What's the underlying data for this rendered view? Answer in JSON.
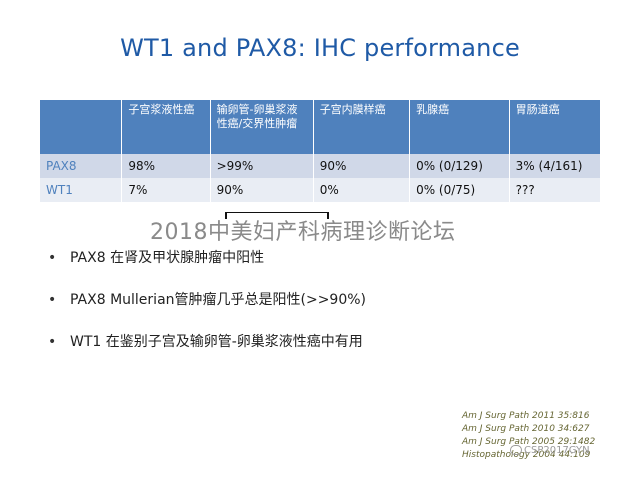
{
  "slide": {
    "title": "WT1 and PAX8: IHC performance"
  },
  "table": {
    "headers": [
      "",
      "子宫浆液性癌",
      "输卵管-卵巢浆液性癌/交界性肿瘤",
      "子宫内膜样癌",
      "乳腺癌",
      "胃肠道癌"
    ],
    "rows": [
      [
        "PAX8",
        "98%",
        ">99%",
        "90%",
        "0% (0/129)",
        "3% (4/161)"
      ],
      [
        "WT1",
        "7%",
        "90%",
        "0%",
        "0% (0/75)",
        "???"
      ]
    ]
  },
  "watermark": {
    "text": "2018中美妇产科病理诊断论坛"
  },
  "bullets": [
    "PAX8 在肾及甲状腺肿瘤中阳性",
    "PAX8 Mullerian管肿瘤几乎总是阳性(>>90%)",
    "WT1 在鉴别子宫及输卵管-卵巢浆液性癌中有用"
  ],
  "references": [
    "Am J Surg Path 2011 35:816",
    "Am J Surg Path 2010 34:627",
    "Am J Surg Path 2005 29:1482",
    "Histopathology 2004 44:109"
  ],
  "wechat_watermark": {
    "text": "CSP2017GYN"
  },
  "colors": {
    "title": "#1f5aa6",
    "header_bg": "#4f81bd",
    "row_a": "#d0d8e8",
    "row_b": "#e9edf4"
  }
}
